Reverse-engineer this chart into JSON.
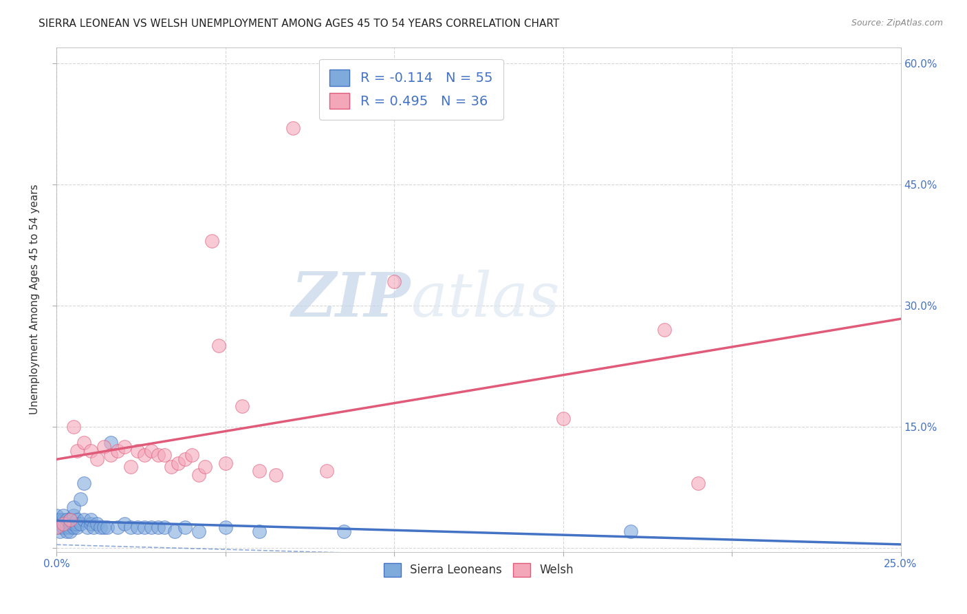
{
  "title": "SIERRA LEONEAN VS WELSH UNEMPLOYMENT AMONG AGES 45 TO 54 YEARS CORRELATION CHART",
  "source": "Source: ZipAtlas.com",
  "ylabel": "Unemployment Among Ages 45 to 54 years",
  "xlim": [
    0.0,
    0.25
  ],
  "ylim": [
    -0.005,
    0.62
  ],
  "xticks": [
    0.0,
    0.05,
    0.1,
    0.15,
    0.2,
    0.25
  ],
  "yticks": [
    0.0,
    0.15,
    0.3,
    0.45,
    0.6
  ],
  "xtick_labels_show": [
    "0.0%",
    "25.0%"
  ],
  "xtick_positions_show": [
    0.0,
    0.25
  ],
  "ytick_labels_right": [
    "",
    "15.0%",
    "30.0%",
    "45.0%",
    "60.0%"
  ],
  "sierra_color": "#7faadc",
  "welsh_color": "#f4a7b9",
  "sierra_line_color": "#4472c4",
  "welsh_line_color": "#e05a7a",
  "sierra_points": [
    [
      0.0,
      0.03
    ],
    [
      0.0,
      0.035
    ],
    [
      0.0,
      0.04
    ],
    [
      0.0,
      0.025
    ],
    [
      0.001,
      0.03
    ],
    [
      0.001,
      0.025
    ],
    [
      0.001,
      0.035
    ],
    [
      0.001,
      0.02
    ],
    [
      0.002,
      0.03
    ],
    [
      0.002,
      0.025
    ],
    [
      0.002,
      0.035
    ],
    [
      0.002,
      0.04
    ],
    [
      0.003,
      0.025
    ],
    [
      0.003,
      0.03
    ],
    [
      0.003,
      0.035
    ],
    [
      0.003,
      0.02
    ],
    [
      0.004,
      0.03
    ],
    [
      0.004,
      0.025
    ],
    [
      0.004,
      0.035
    ],
    [
      0.004,
      0.02
    ],
    [
      0.005,
      0.025
    ],
    [
      0.005,
      0.03
    ],
    [
      0.005,
      0.04
    ],
    [
      0.005,
      0.05
    ],
    [
      0.006,
      0.03
    ],
    [
      0.006,
      0.035
    ],
    [
      0.006,
      0.025
    ],
    [
      0.007,
      0.06
    ],
    [
      0.007,
      0.03
    ],
    [
      0.008,
      0.035
    ],
    [
      0.008,
      0.08
    ],
    [
      0.009,
      0.025
    ],
    [
      0.01,
      0.03
    ],
    [
      0.01,
      0.035
    ],
    [
      0.011,
      0.025
    ],
    [
      0.012,
      0.03
    ],
    [
      0.013,
      0.025
    ],
    [
      0.014,
      0.025
    ],
    [
      0.015,
      0.025
    ],
    [
      0.016,
      0.13
    ],
    [
      0.018,
      0.025
    ],
    [
      0.02,
      0.03
    ],
    [
      0.022,
      0.025
    ],
    [
      0.024,
      0.025
    ],
    [
      0.026,
      0.025
    ],
    [
      0.028,
      0.025
    ],
    [
      0.03,
      0.025
    ],
    [
      0.032,
      0.025
    ],
    [
      0.035,
      0.02
    ],
    [
      0.038,
      0.025
    ],
    [
      0.042,
      0.02
    ],
    [
      0.05,
      0.025
    ],
    [
      0.06,
      0.02
    ],
    [
      0.085,
      0.02
    ],
    [
      0.17,
      0.02
    ]
  ],
  "welsh_points": [
    [
      0.0,
      0.025
    ],
    [
      0.002,
      0.03
    ],
    [
      0.004,
      0.035
    ],
    [
      0.005,
      0.15
    ],
    [
      0.006,
      0.12
    ],
    [
      0.008,
      0.13
    ],
    [
      0.01,
      0.12
    ],
    [
      0.012,
      0.11
    ],
    [
      0.014,
      0.125
    ],
    [
      0.016,
      0.115
    ],
    [
      0.018,
      0.12
    ],
    [
      0.02,
      0.125
    ],
    [
      0.022,
      0.1
    ],
    [
      0.024,
      0.12
    ],
    [
      0.026,
      0.115
    ],
    [
      0.028,
      0.12
    ],
    [
      0.03,
      0.115
    ],
    [
      0.032,
      0.115
    ],
    [
      0.034,
      0.1
    ],
    [
      0.036,
      0.105
    ],
    [
      0.038,
      0.11
    ],
    [
      0.04,
      0.115
    ],
    [
      0.042,
      0.09
    ],
    [
      0.044,
      0.1
    ],
    [
      0.046,
      0.38
    ],
    [
      0.048,
      0.25
    ],
    [
      0.05,
      0.105
    ],
    [
      0.055,
      0.175
    ],
    [
      0.06,
      0.095
    ],
    [
      0.065,
      0.09
    ],
    [
      0.07,
      0.52
    ],
    [
      0.08,
      0.095
    ],
    [
      0.1,
      0.33
    ],
    [
      0.15,
      0.16
    ],
    [
      0.18,
      0.27
    ],
    [
      0.19,
      0.08
    ]
  ],
  "watermark_zip": "ZIP",
  "watermark_atlas": "atlas",
  "background_color": "#ffffff",
  "grid_color": "#cccccc",
  "title_fontsize": 11,
  "axis_label_fontsize": 11,
  "tick_fontsize": 11
}
